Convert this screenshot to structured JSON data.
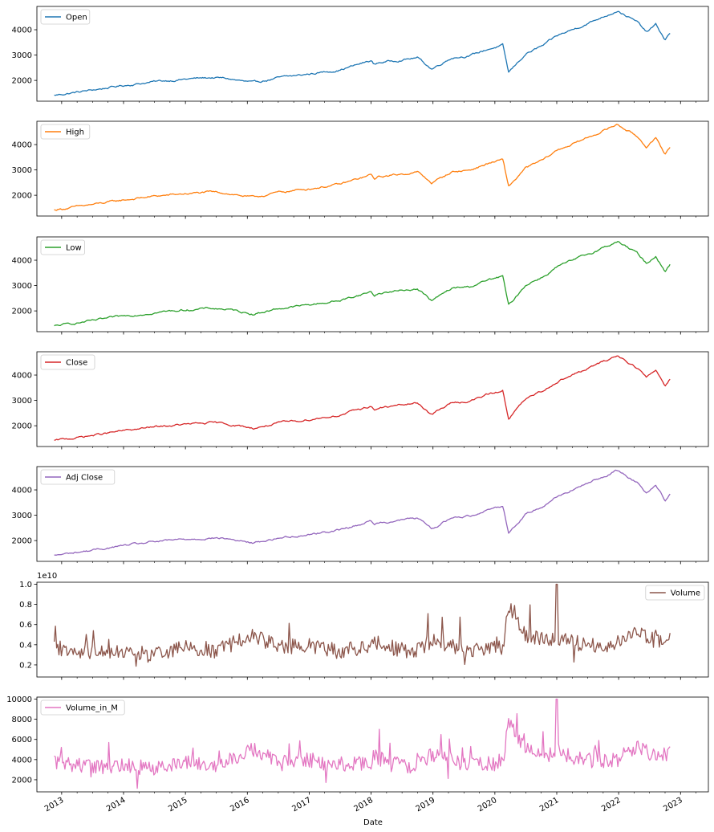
{
  "chart_data": {
    "type": "line",
    "xlabel": "Date",
    "x_tick_labels": [
      "2013",
      "2014",
      "2015",
      "2016",
      "2017",
      "2018",
      "2019",
      "2020",
      "2021",
      "2022",
      "2023"
    ],
    "x_range": [
      2012.6,
      2023.45
    ],
    "data_range": [
      2012.88,
      2022.83
    ],
    "anchors_x": [
      2012.88,
      2013.5,
      2014.0,
      2014.5,
      2015.0,
      2015.4,
      2015.65,
      2016.1,
      2016.5,
      2017.0,
      2017.5,
      2018.0,
      2018.05,
      2018.12,
      2018.6,
      2018.75,
      2018.98,
      2019.3,
      2019.6,
      2019.9,
      2020.13,
      2020.22,
      2020.5,
      2020.8,
      2021.0,
      2021.5,
      2021.98,
      2022.3,
      2022.45,
      2022.6,
      2022.75,
      2022.83
    ],
    "series": [
      {
        "name": "Open",
        "color": "#1f77b4",
        "legend_loc": "upper left",
        "ylim": [
          1180,
          4920
        ],
        "yticks": [
          2000,
          3000,
          4000
        ],
        "ytick_labels": [
          "2000",
          "3000",
          "4000"
        ],
        "anchors_y": [
          1410,
          1620,
          1800,
          1950,
          2050,
          2110,
          2080,
          1900,
          2100,
          2250,
          2420,
          2780,
          2620,
          2700,
          2850,
          2900,
          2450,
          2900,
          2980,
          3240,
          3380,
          2300,
          3050,
          3400,
          3750,
          4250,
          4760,
          4300,
          3900,
          4200,
          3600,
          3860
        ]
      },
      {
        "name": "High",
        "color": "#ff7f0e",
        "legend_loc": "upper left",
        "ylim": [
          1180,
          4920
        ],
        "yticks": [
          2000,
          3000,
          4000
        ],
        "ytick_labels": [
          "2000",
          "3000",
          "4000"
        ],
        "anchors_y": [
          1420,
          1630,
          1810,
          1960,
          2060,
          2120,
          2090,
          1910,
          2110,
          2260,
          2430,
          2800,
          2640,
          2720,
          2870,
          2920,
          2480,
          2920,
          3000,
          3260,
          3400,
          2340,
          3070,
          3420,
          3770,
          4270,
          4800,
          4320,
          3920,
          4220,
          3640,
          3890
        ]
      },
      {
        "name": "Low",
        "color": "#2ca02c",
        "legend_loc": "upper left",
        "ylim": [
          1180,
          4920
        ],
        "yticks": [
          2000,
          3000,
          4000
        ],
        "ytick_labels": [
          "2000",
          "3000",
          "4000"
        ],
        "anchors_y": [
          1400,
          1610,
          1790,
          1940,
          2040,
          2100,
          2070,
          1880,
          2090,
          2240,
          2410,
          2760,
          2600,
          2690,
          2840,
          2880,
          2400,
          2880,
          2960,
          3220,
          3360,
          2200,
          3030,
          3380,
          3730,
          4230,
          4740,
          4270,
          3870,
          4180,
          3560,
          3830
        ]
      },
      {
        "name": "Close",
        "color": "#d62728",
        "legend_loc": "upper left",
        "ylim": [
          1180,
          4920
        ],
        "yticks": [
          2000,
          3000,
          4000
        ],
        "ytick_labels": [
          "2000",
          "3000",
          "4000"
        ],
        "anchors_y": [
          1410,
          1620,
          1800,
          1950,
          2050,
          2110,
          2080,
          1900,
          2100,
          2250,
          2420,
          2780,
          2620,
          2700,
          2850,
          2900,
          2450,
          2900,
          2980,
          3240,
          3380,
          2300,
          3050,
          3400,
          3750,
          4250,
          4770,
          4300,
          3900,
          4200,
          3590,
          3870
        ]
      },
      {
        "name": "Adj Close",
        "color": "#9467bd",
        "legend_loc": "upper left",
        "ylim": [
          1180,
          4920
        ],
        "yticks": [
          2000,
          3000,
          4000
        ],
        "ytick_labels": [
          "2000",
          "3000",
          "4000"
        ],
        "anchors_y": [
          1410,
          1620,
          1800,
          1950,
          2050,
          2110,
          2080,
          1900,
          2100,
          2250,
          2420,
          2780,
          2620,
          2700,
          2850,
          2900,
          2450,
          2900,
          2980,
          3240,
          3380,
          2300,
          3050,
          3400,
          3750,
          4250,
          4770,
          4300,
          3900,
          4200,
          3590,
          3870
        ]
      },
      {
        "name": "Volume",
        "color": "#8c564b",
        "legend_loc": "upper right",
        "offset_label": "1e10",
        "ylim": [
          0.08,
          1.02
        ],
        "yticks": [
          0.2,
          0.4,
          0.6,
          0.8,
          1.0
        ],
        "ytick_labels": [
          "0.2",
          "0.4",
          "0.6",
          "0.8",
          "1.0"
        ],
        "anchors_y": [
          0.37,
          0.33,
          0.34,
          0.31,
          0.38,
          0.33,
          0.38,
          0.5,
          0.37,
          0.4,
          0.33,
          0.38,
          0.45,
          0.41,
          0.33,
          0.35,
          0.44,
          0.38,
          0.35,
          0.36,
          0.37,
          0.78,
          0.5,
          0.44,
          0.47,
          0.39,
          0.4,
          0.52,
          0.48,
          0.43,
          0.45,
          0.47
        ],
        "peak_x": 2021.0,
        "peak_y": 1.0
      },
      {
        "name": "Volume_in_M",
        "color": "#e377c2",
        "legend_loc": "upper left",
        "ylim": [
          800,
          10200
        ],
        "yticks": [
          2000,
          4000,
          6000,
          8000,
          10000
        ],
        "ytick_labels": [
          "2000",
          "4000",
          "6000",
          "8000",
          "10000"
        ],
        "anchors_y": [
          3700,
          3300,
          3400,
          3100,
          3800,
          3300,
          3800,
          5000,
          3700,
          4000,
          3300,
          3800,
          4500,
          4100,
          3300,
          3500,
          4400,
          3800,
          3500,
          3600,
          3700,
          7800,
          5000,
          4400,
          4700,
          3900,
          4000,
          5200,
          4800,
          4300,
          4500,
          4700
        ],
        "peak_x": 2021.0,
        "peak_y": 10000
      }
    ]
  }
}
